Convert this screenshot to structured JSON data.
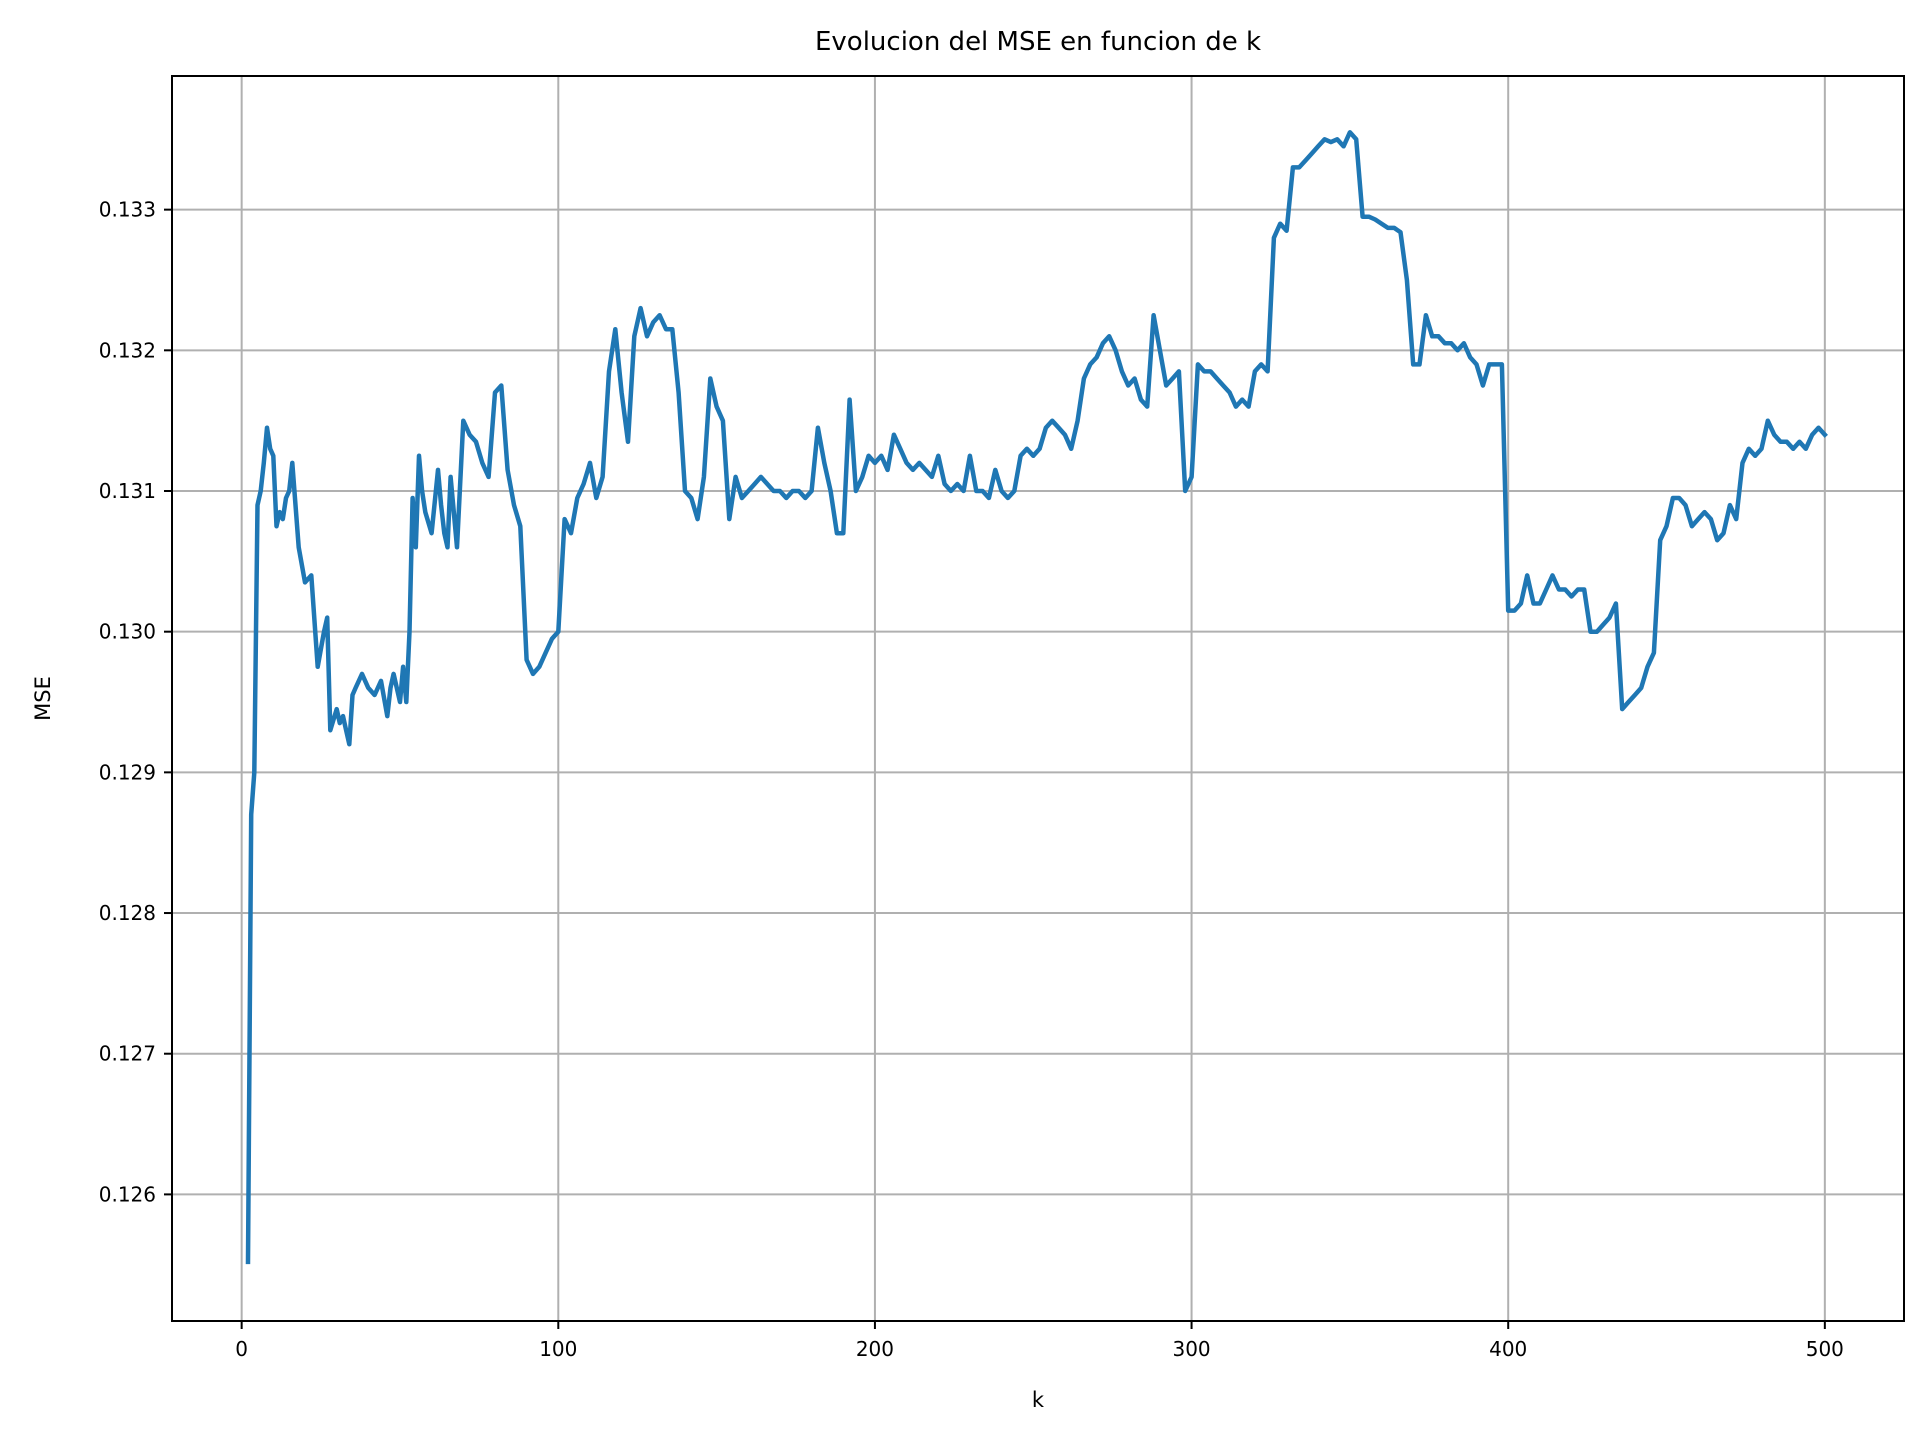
{
  "chart_data": {
    "type": "line",
    "title": "Evolucion del MSE en funcion de k",
    "xlabel": "k",
    "ylabel": "MSE",
    "xlim": [
      -22,
      525
    ],
    "ylim": [
      0.1251,
      0.13395
    ],
    "grid": true,
    "line_color": "#1f77b4",
    "grid_color": "#b0b0b0",
    "x_ticks": [
      0,
      100,
      200,
      300,
      400,
      500
    ],
    "x_tick_labels": [
      "0",
      "100",
      "200",
      "300",
      "400",
      "500"
    ],
    "y_ticks": [
      0.126,
      0.127,
      0.128,
      0.129,
      0.13,
      0.131,
      0.132,
      0.133
    ],
    "y_tick_labels": [
      "0.126",
      "0.127",
      "0.128",
      "0.129",
      "0.130",
      "0.131",
      "0.132",
      "0.133"
    ],
    "series": [
      {
        "x": [
          2,
          3,
          4,
          5,
          6,
          7,
          8,
          9,
          10,
          11,
          12,
          13,
          14,
          15,
          16,
          17,
          18,
          20,
          22,
          24,
          26,
          27,
          28,
          30,
          31,
          32,
          33,
          34,
          35,
          36,
          37,
          38,
          40,
          42,
          44,
          46,
          47,
          48,
          50,
          51,
          52,
          53,
          54,
          55,
          56,
          57,
          58,
          60,
          62,
          63,
          64,
          65,
          66,
          68,
          70,
          72,
          74,
          76,
          78,
          80,
          82,
          84,
          86,
          88,
          90,
          92,
          94,
          96,
          98,
          100,
          102,
          104,
          106,
          108,
          110,
          112,
          114,
          116,
          118,
          120,
          122,
          124,
          126,
          128,
          130,
          132,
          134,
          136,
          138,
          140,
          142,
          144,
          146,
          148,
          150,
          152,
          154,
          156,
          158,
          160,
          162,
          164,
          166,
          168,
          170,
          172,
          174,
          176,
          178,
          180,
          182,
          184,
          186,
          188,
          190,
          192,
          194,
          196,
          198,
          200,
          202,
          204,
          206,
          208,
          210,
          212,
          214,
          216,
          218,
          220,
          222,
          224,
          226,
          228,
          230,
          232,
          234,
          236,
          238,
          240,
          242,
          244,
          246,
          248,
          250,
          252,
          254,
          256,
          258,
          260,
          262,
          264,
          266,
          268,
          270,
          272,
          274,
          276,
          278,
          280,
          282,
          284,
          286,
          288,
          290,
          292,
          294,
          296,
          298,
          300,
          302,
          304,
          306,
          308,
          310,
          312,
          314,
          316,
          318,
          320,
          322,
          324,
          326,
          328,
          330,
          332,
          334,
          336,
          338,
          340,
          342,
          344,
          346,
          348,
          350,
          352,
          354,
          356,
          358,
          360,
          362,
          364,
          366,
          368,
          370,
          372,
          374,
          376,
          378,
          380,
          382,
          384,
          386,
          388,
          390,
          392,
          394,
          396,
          398,
          400,
          402,
          404,
          406,
          408,
          410,
          412,
          414,
          416,
          418,
          420,
          422,
          424,
          426,
          428,
          430,
          432,
          434,
          436,
          438,
          440,
          442,
          444,
          446,
          448,
          450,
          452,
          454,
          456,
          458,
          460,
          462,
          464,
          466,
          468,
          470,
          472,
          474,
          476,
          478,
          480,
          482,
          484,
          486,
          488,
          490,
          492,
          494,
          496,
          498,
          500
        ],
        "y": [
          0.12552,
          0.1287,
          0.129,
          0.1309,
          0.131,
          0.1312,
          0.13145,
          0.1313,
          0.13125,
          0.13075,
          0.13085,
          0.1308,
          0.13095,
          0.131,
          0.1312,
          0.1309,
          0.1306,
          0.13035,
          0.1304,
          0.12975,
          0.13,
          0.1301,
          0.1293,
          0.12945,
          0.12935,
          0.1294,
          0.1293,
          0.1292,
          0.12955,
          0.1296,
          0.12965,
          0.1297,
          0.1296,
          0.12955,
          0.12965,
          0.1294,
          0.1296,
          0.1297,
          0.1295,
          0.12975,
          0.1295,
          0.13,
          0.13095,
          0.1306,
          0.13125,
          0.131,
          0.13085,
          0.1307,
          0.13115,
          0.1309,
          0.1307,
          0.1306,
          0.1311,
          0.1306,
          0.1315,
          0.1314,
          0.13135,
          0.1312,
          0.1311,
          0.1317,
          0.13175,
          0.13115,
          0.1309,
          0.13075,
          0.1298,
          0.1297,
          0.12975,
          0.12985,
          0.12995,
          0.13,
          0.1308,
          0.1307,
          0.13095,
          0.13105,
          0.1312,
          0.13095,
          0.1311,
          0.13185,
          0.13215,
          0.1317,
          0.13135,
          0.1321,
          0.1323,
          0.1321,
          0.1322,
          0.13225,
          0.13215,
          0.13215,
          0.1317,
          0.131,
          0.13095,
          0.1308,
          0.1311,
          0.1318,
          0.1316,
          0.1315,
          0.1308,
          0.1311,
          0.13095,
          0.131,
          0.13105,
          0.1311,
          0.13105,
          0.131,
          0.131,
          0.13095,
          0.131,
          0.131,
          0.13095,
          0.131,
          0.13145,
          0.1312,
          0.131,
          0.1307,
          0.1307,
          0.13165,
          0.131,
          0.1311,
          0.13125,
          0.1312,
          0.13125,
          0.13115,
          0.1314,
          0.1313,
          0.1312,
          0.13115,
          0.1312,
          0.13115,
          0.1311,
          0.13125,
          0.13105,
          0.131,
          0.13105,
          0.131,
          0.13125,
          0.131,
          0.131,
          0.13095,
          0.13115,
          0.131,
          0.13095,
          0.131,
          0.13125,
          0.1313,
          0.13125,
          0.1313,
          0.13145,
          0.1315,
          0.13145,
          0.1314,
          0.1313,
          0.1315,
          0.1318,
          0.1319,
          0.13195,
          0.13205,
          0.1321,
          0.132,
          0.13185,
          0.13175,
          0.1318,
          0.13165,
          0.1316,
          0.13225,
          0.132,
          0.13175,
          0.1318,
          0.13185,
          0.131,
          0.1311,
          0.1319,
          0.13185,
          0.13185,
          0.1318,
          0.13175,
          0.1317,
          0.1316,
          0.13165,
          0.1316,
          0.13185,
          0.1319,
          0.13185,
          0.1328,
          0.1329,
          0.13285,
          0.1333,
          0.1333,
          0.13335,
          0.1334,
          0.13345,
          0.1335,
          0.13348,
          0.1335,
          0.13345,
          0.13355,
          0.1335,
          0.13295,
          0.13295,
          0.13293,
          0.1329,
          0.13287,
          0.13287,
          0.13284,
          0.1325,
          0.1319,
          0.1319,
          0.13225,
          0.1321,
          0.1321,
          0.13205,
          0.13205,
          0.132,
          0.13205,
          0.13195,
          0.1319,
          0.13175,
          0.1319,
          0.1319,
          0.1319,
          0.13015,
          0.13015,
          0.1302,
          0.1304,
          0.1302,
          0.1302,
          0.1303,
          0.1304,
          0.1303,
          0.1303,
          0.13025,
          0.1303,
          0.1303,
          0.13,
          0.13,
          0.13005,
          0.1301,
          0.1302,
          0.12945,
          0.1295,
          0.12955,
          0.1296,
          0.12975,
          0.12985,
          0.13065,
          0.13075,
          0.13095,
          0.13095,
          0.1309,
          0.13075,
          0.1308,
          0.13085,
          0.1308,
          0.13065,
          0.1307,
          0.1309,
          0.1308,
          0.1312,
          0.1313,
          0.13125,
          0.1313,
          0.1315,
          0.1314,
          0.13135,
          0.13135,
          0.1313,
          0.13135,
          0.1313,
          0.1314,
          0.13145,
          0.1314
        ]
      }
    ]
  }
}
